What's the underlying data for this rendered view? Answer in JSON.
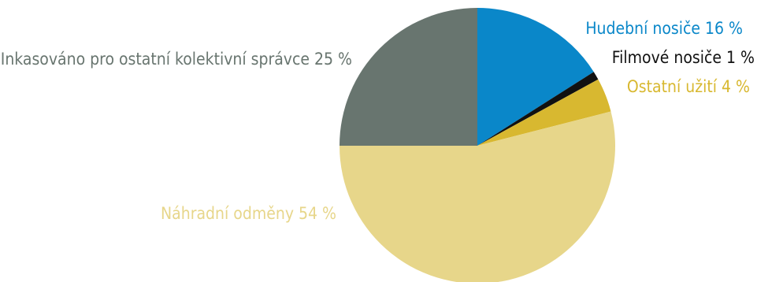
{
  "chart_data": {
    "type": "pie",
    "title": "",
    "series": [
      {
        "name": "Hudební nosiče",
        "value": 16,
        "label": "Hudební nosiče 16 %",
        "color": "#0a87c9"
      },
      {
        "name": "Filmové nosiče",
        "value": 1,
        "label": "Filmové nosiče 1 %",
        "color": "#111111"
      },
      {
        "name": "Ostatní užití",
        "value": 4,
        "label": "Ostatní užití 4 %",
        "color": "#d8b830"
      },
      {
        "name": "Náhradní odměny",
        "value": 54,
        "label": "Náhradní odměny 54 %",
        "color": "#e7d68a"
      },
      {
        "name": "Inkasováno pro ostatní kolektivní správce",
        "value": 25,
        "label": "Inkasováno pro ostatní kolektivní správce 25 %",
        "color": "#68756f"
      }
    ]
  }
}
